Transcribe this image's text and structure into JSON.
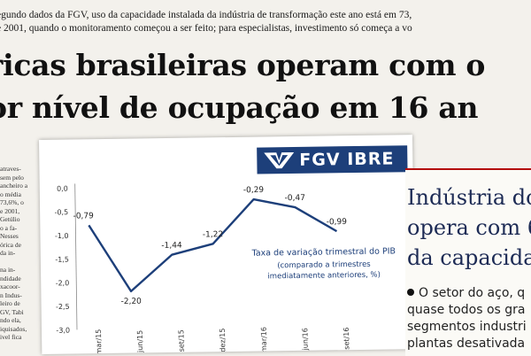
{
  "article": {
    "lead_lines": [
      "egundo dados da FGV, uso da capacidade instalada da indústria de transformação este ano está em 73,",
      "e 2001, quando o monitoramento começou a ser feito; para especialistas, investimento só começa a vo"
    ],
    "headline_lines": [
      "ricas brasileiras operam com o",
      "or nível de ocupação em 16 an"
    ],
    "left_column_lines": [
      "atraves-",
      "sem pelo",
      "ancheiro a",
      "o média",
      "73,6%, o",
      "e 2001,",
      "Getúlio",
      "o a fa-",
      "Nesses",
      "órica de",
      "da in-",
      "",
      "na in-",
      "ndidade",
      "xacoor-",
      "n Indus-",
      "leiro de",
      "GV, Tabi",
      "ndo ela,",
      "iquisados,",
      "ivel fica"
    ]
  },
  "logo": {
    "text": "FGV IBRE",
    "color": "#1d3f7a"
  },
  "sidebar": {
    "title_lines": [
      "Indústria do",
      "opera com 6",
      "da capacidad"
    ],
    "body_lines": [
      "O setor do aço, q",
      "quase todos os gra",
      "segmentos industri",
      "plantas desativada"
    ]
  },
  "chart_data": {
    "type": "line",
    "title": "Taxa de variação trimestral do PIB",
    "subtitle": "(comparado a trimestres imediatamente anteriores, %)",
    "subtitle_lines": [
      "(comparado a trimestres",
      "imediatamente anteriores, %)"
    ],
    "categories": [
      "mar/15",
      "jun/15",
      "set/15",
      "dez/15",
      "mar/16",
      "jun/16",
      "set/16"
    ],
    "values": [
      -0.79,
      -2.2,
      -1.44,
      -1.22,
      -0.29,
      -0.47,
      -0.99
    ],
    "data_labels": [
      "-0,79",
      "-2,20",
      "-1,44",
      "-1,22",
      "-0,29",
      "-0,47",
      "-0,99"
    ],
    "y_ticks": [
      0.0,
      -0.5,
      -1.0,
      -1.5,
      -2.0,
      -2.5,
      -3.0
    ],
    "y_tick_labels": [
      "0,0",
      "-0,5",
      "-1,0",
      "-1,5",
      "-2,0",
      "-2,5",
      "-3,0"
    ],
    "ylim": [
      -3.0,
      0.0
    ],
    "grid": false,
    "line_color": "#1d3f7a"
  }
}
